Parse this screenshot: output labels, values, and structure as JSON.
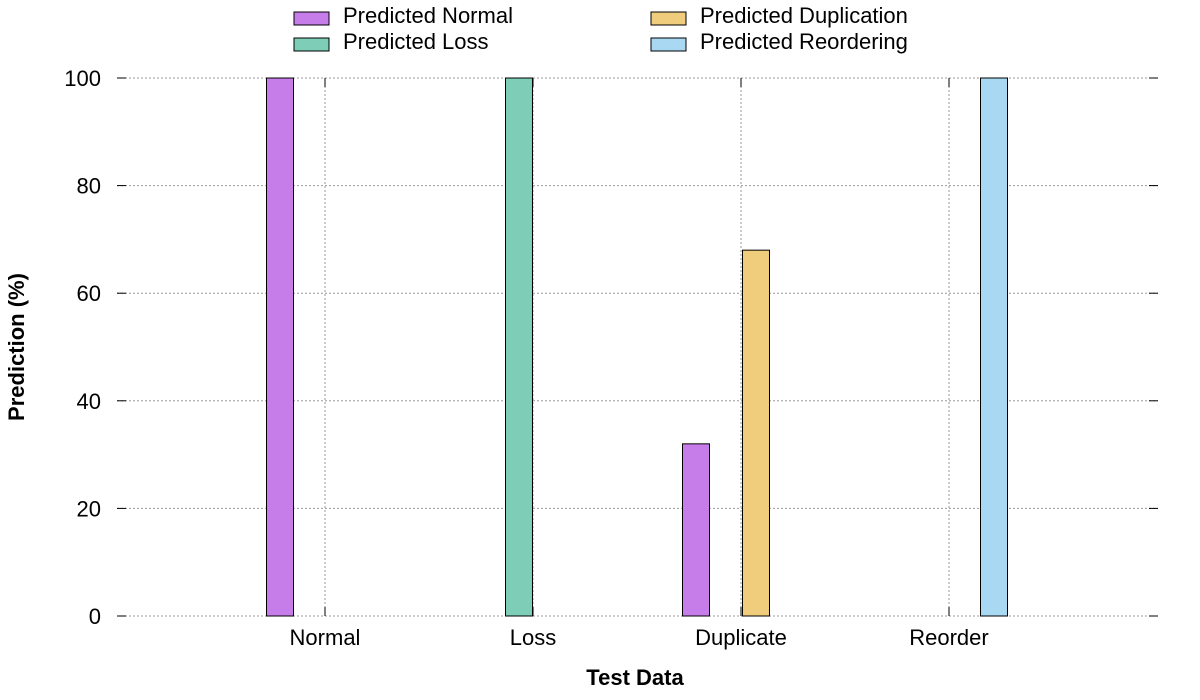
{
  "chart_data": {
    "type": "bar",
    "xlabel": "Test Data",
    "ylabel": "Prediction (%)",
    "ylim": [
      0,
      100
    ],
    "yticks": [
      0,
      20,
      40,
      60,
      80,
      100
    ],
    "grid": true,
    "legend_position": "top",
    "categories": [
      "Normal",
      "Loss",
      "Duplicate",
      "Reorder"
    ],
    "series": [
      {
        "name": "Predicted Normal",
        "color": "#c77de9",
        "values": [
          100,
          0,
          32,
          0
        ]
      },
      {
        "name": "Predicted Loss",
        "color": "#7ecdb6",
        "values": [
          0,
          100,
          0,
          0
        ]
      },
      {
        "name": "Predicted Duplication",
        "color": "#f0cd7c",
        "values": [
          0,
          0,
          68,
          0
        ]
      },
      {
        "name": "Predicted Reordering",
        "color": "#a9d8f2",
        "values": [
          0,
          0,
          0,
          100
        ]
      }
    ]
  }
}
